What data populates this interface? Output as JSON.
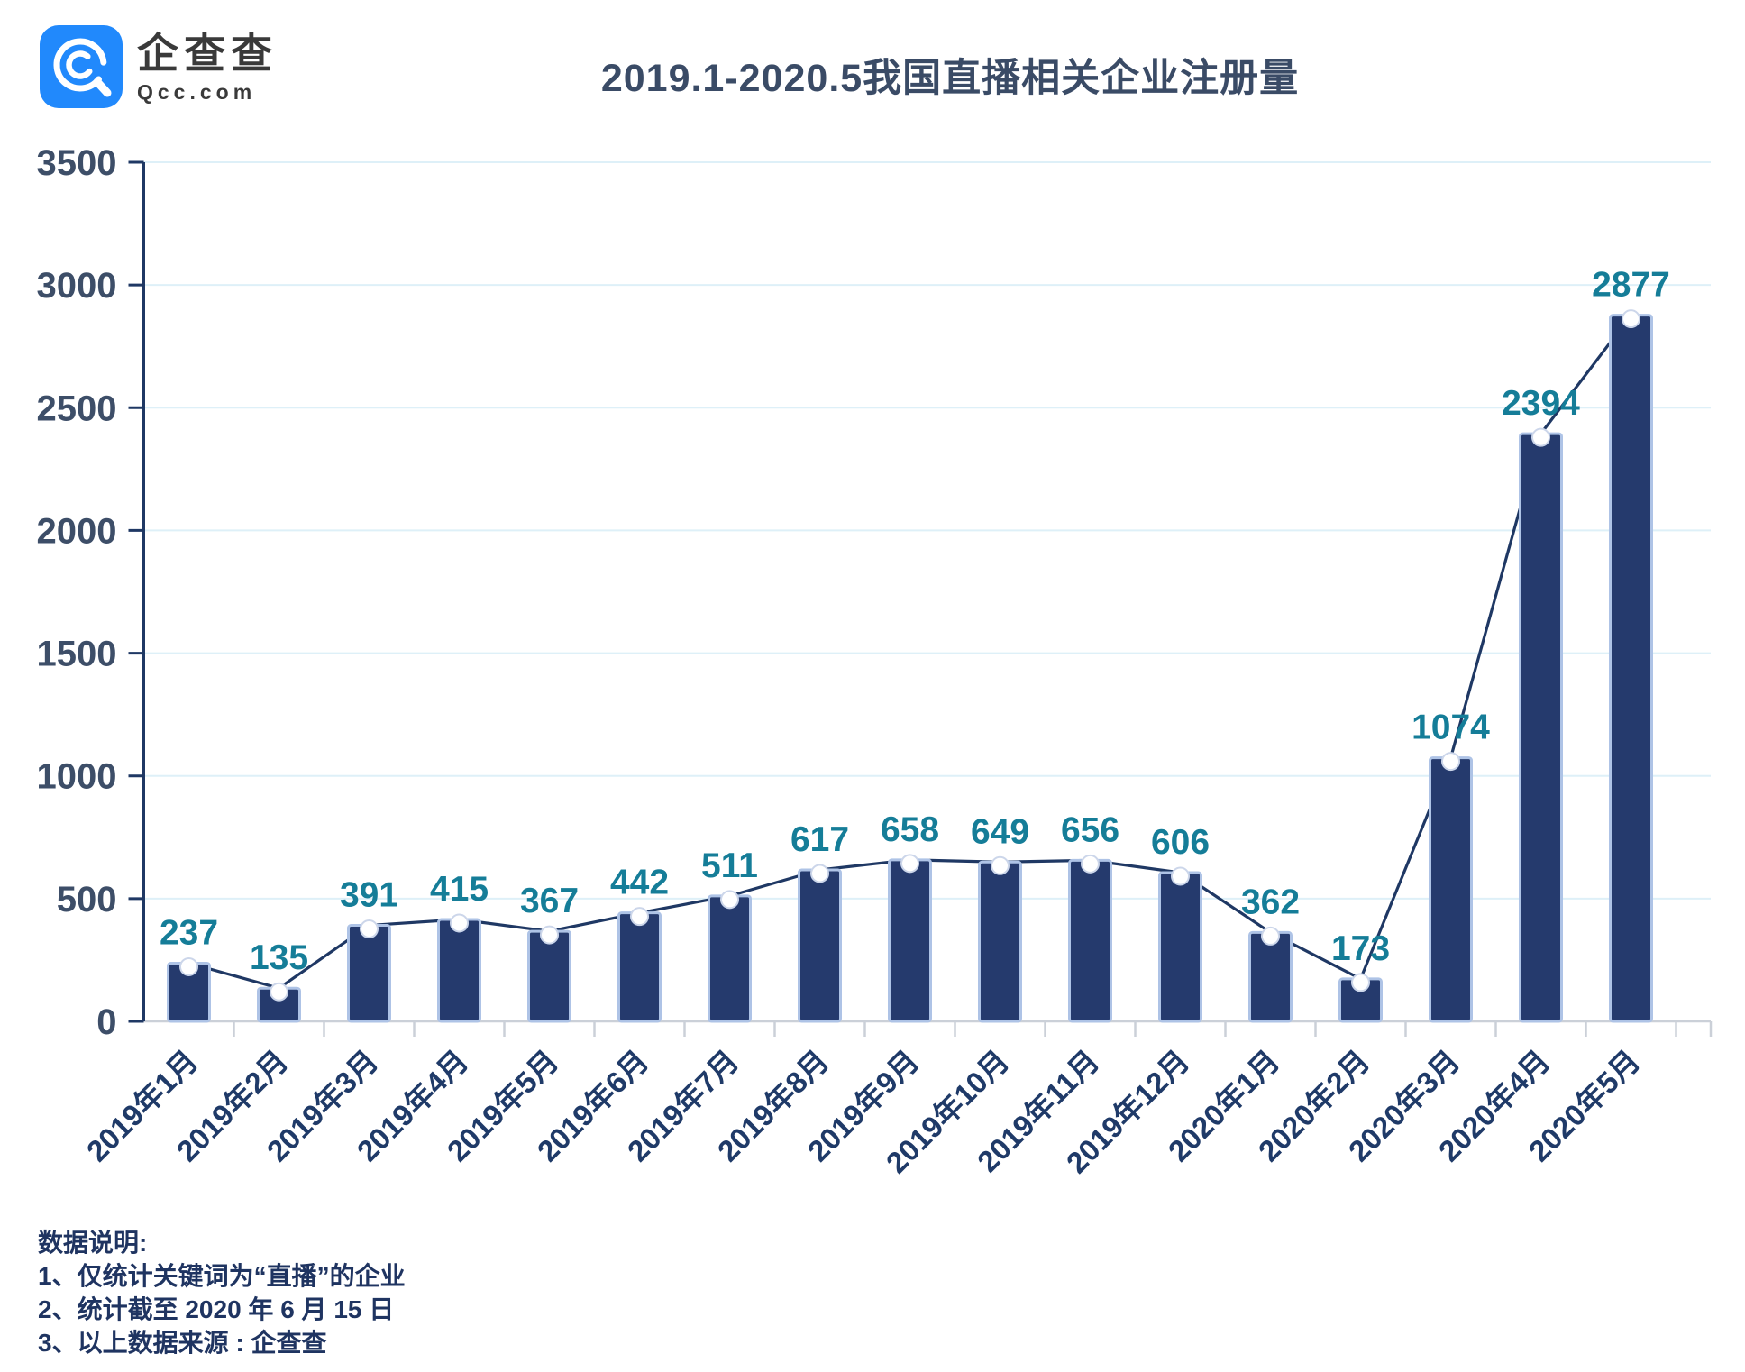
{
  "header": {
    "logo": {
      "brand_name": "企查查",
      "brand_domain": "Qcc.com"
    },
    "title": "2019.1-2020.5我国直播相关企业注册量"
  },
  "chart_data": {
    "type": "bar",
    "title": "2019.1-2020.5我国直播相关企业注册量",
    "categories": [
      "2019年1月",
      "2019年2月",
      "2019年3月",
      "2019年4月",
      "2019年5月",
      "2019年6月",
      "2019年7月",
      "2019年8月",
      "2019年9月",
      "2019年10月",
      "2019年11月",
      "2019年12月",
      "2020年1月",
      "2020年2月",
      "2020年3月",
      "2020年4月",
      "2020年5月"
    ],
    "series": [
      {
        "name": "直播相关企业注册量",
        "values": [
          237,
          135,
          391,
          415,
          367,
          442,
          511,
          617,
          658,
          649,
          656,
          606,
          362,
          173,
          1074,
          2394,
          2877
        ]
      }
    ],
    "overlay_line_with_markers": true,
    "data_labels_shown": true,
    "xlabel": "",
    "ylabel": "",
    "ylim": [
      0,
      3500
    ],
    "yticks": [
      0,
      500,
      1000,
      1500,
      2000,
      2500,
      3000,
      3500
    ],
    "grid": "horizontal",
    "legend_position": "none",
    "x_tick_label_rotation_deg": -45,
    "colors": {
      "bar_fill": "#253a6d",
      "bar_stroke": "#aec3e6",
      "line": "#1f3864",
      "marker_fill": "#ffffff",
      "marker_stroke": "#ccd6ea",
      "value_label": "#157d98",
      "y_tick_label": "#3d4e68",
      "x_tick_label": "#1f3a68",
      "y_axis": "#1f3864",
      "x_axis": "#cbd0d8",
      "gridline": "#def0f8",
      "title": "#3a4b66",
      "footnote": "#1f3461",
      "logo_blue": "#2189fc",
      "logo_text": "#3a3a3a"
    }
  },
  "footnotes": {
    "heading": "数据说明:",
    "items": [
      "1、仅统计关键词为“直播”的企业",
      "2、统计截至 2020 年 6 月 15 日",
      "3、以上数据来源 : 企查查"
    ]
  }
}
